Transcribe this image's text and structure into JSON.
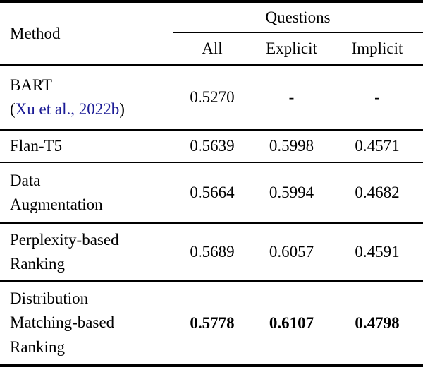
{
  "table": {
    "header": {
      "method": "Method",
      "group": "Questions",
      "columns": [
        "All",
        "Explicit",
        "Implicit"
      ]
    },
    "rows": [
      {
        "method_lines": [
          "BART"
        ],
        "citation": {
          "open": "(",
          "link": "Xu et al., 2022b",
          "close": ")"
        },
        "values": [
          "0.5270",
          "-",
          "-"
        ],
        "bold": false
      },
      {
        "method_lines": [
          "Flan-T5"
        ],
        "values": [
          "0.5639",
          "0.5998",
          "0.4571"
        ],
        "bold": false
      },
      {
        "method_lines": [
          "Data",
          "Augmentation"
        ],
        "values": [
          "0.5664",
          "0.5994",
          "0.4682"
        ],
        "bold": false
      },
      {
        "method_lines": [
          "Perplexity-based",
          "Ranking"
        ],
        "values": [
          "0.5689",
          "0.6057",
          "0.4591"
        ],
        "bold": false
      },
      {
        "method_lines": [
          "Distribution",
          "Matching-based",
          "Ranking"
        ],
        "values": [
          "0.5778",
          "0.6107",
          "0.4798"
        ],
        "bold": true
      }
    ],
    "colors": {
      "text": "#000000",
      "citation_link": "#1c1c96",
      "rule": "#000000",
      "background": "#ffffff"
    }
  }
}
